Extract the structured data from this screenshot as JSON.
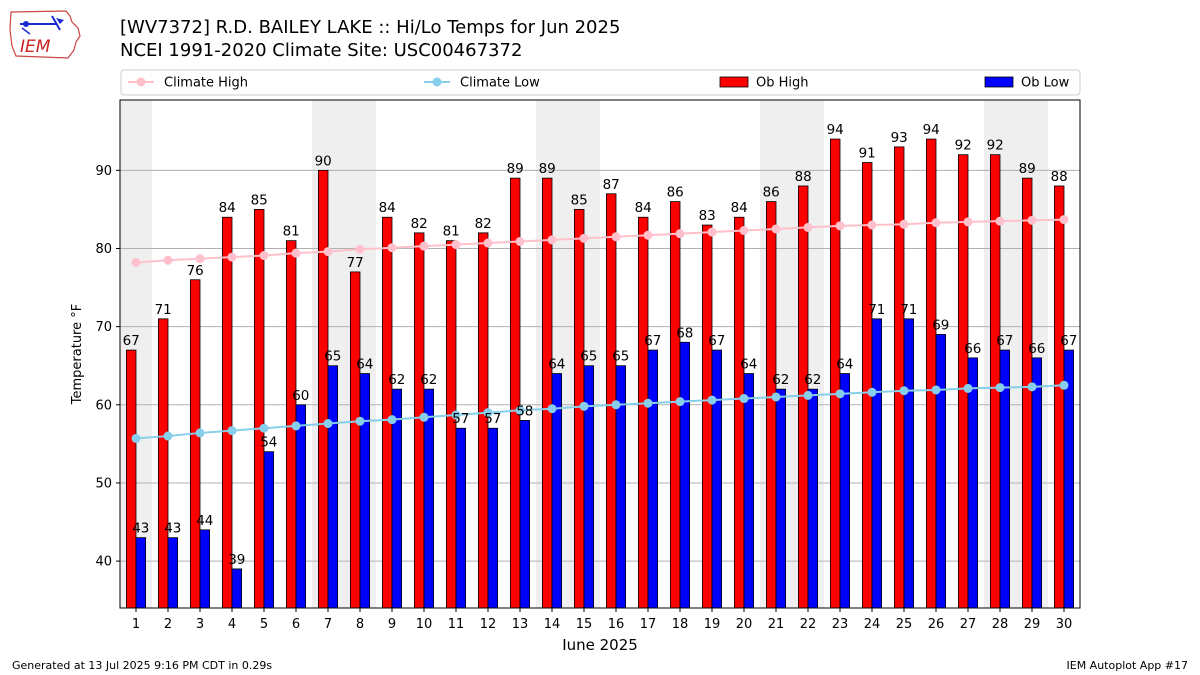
{
  "header": {
    "title_line1": "[WV7372] R.D. BAILEY LAKE :: Hi/Lo Temps for Jun 2025",
    "title_line2": "NCEI 1991-2020 Climate Site: USC00467372",
    "logo_text": "IEM"
  },
  "footer": {
    "generated": "Generated at 13 Jul 2025 9:16 PM CDT in 0.29s",
    "app": "IEM Autoplot App #17"
  },
  "colors": {
    "ob_high": "#ff0000",
    "ob_low": "#0000ff",
    "climate_high": "#ffc0cb",
    "climate_low": "#87ceeb",
    "weekend_shade": "#efefef",
    "grid": "#b0b0b0"
  },
  "chart_data": {
    "type": "bar",
    "xlabel": "June 2025",
    "ylabel": "Temperature °F",
    "ylim": [
      34,
      99
    ],
    "yticks": [
      40,
      50,
      60,
      70,
      80,
      90
    ],
    "grid": "horizontal",
    "legend_position": "top",
    "categories": [
      "1",
      "2",
      "3",
      "4",
      "5",
      "6",
      "7",
      "8",
      "9",
      "10",
      "11",
      "12",
      "13",
      "14",
      "15",
      "16",
      "17",
      "18",
      "19",
      "20",
      "21",
      "22",
      "23",
      "24",
      "25",
      "26",
      "27",
      "28",
      "29",
      "30"
    ],
    "shaded_days": [
      "1",
      "7",
      "8",
      "14",
      "15",
      "21",
      "22",
      "28",
      "29"
    ],
    "series": [
      {
        "name": "Ob High",
        "kind": "bar",
        "values": [
          67,
          71,
          76,
          84,
          85,
          81,
          90,
          77,
          84,
          82,
          81,
          82,
          89,
          89,
          85,
          87,
          84,
          86,
          83,
          84,
          86,
          88,
          94,
          91,
          93,
          94,
          92,
          92,
          89,
          88
        ]
      },
      {
        "name": "Ob Low",
        "kind": "bar",
        "values": [
          43,
          43,
          44,
          39,
          54,
          60,
          65,
          64,
          62,
          62,
          57,
          57,
          58,
          64,
          65,
          65,
          67,
          68,
          67,
          64,
          62,
          62,
          64,
          71,
          71,
          69,
          66,
          67,
          66,
          67
        ]
      },
      {
        "name": "Climate High",
        "kind": "line",
        "values": [
          78.2,
          78.5,
          78.7,
          78.9,
          79.1,
          79.4,
          79.6,
          79.9,
          80.1,
          80.3,
          80.5,
          80.7,
          80.9,
          81.1,
          81.3,
          81.5,
          81.7,
          81.9,
          82.1,
          82.3,
          82.5,
          82.7,
          82.9,
          83.0,
          83.1,
          83.3,
          83.4,
          83.5,
          83.6,
          83.7
        ]
      },
      {
        "name": "Climate Low",
        "kind": "line",
        "values": [
          55.7,
          56.0,
          56.4,
          56.7,
          57.0,
          57.3,
          57.6,
          57.9,
          58.1,
          58.4,
          58.7,
          59.0,
          59.3,
          59.5,
          59.8,
          60.0,
          60.2,
          60.4,
          60.6,
          60.8,
          61.0,
          61.2,
          61.4,
          61.6,
          61.8,
          61.9,
          62.1,
          62.2,
          62.3,
          62.5
        ]
      }
    ]
  }
}
